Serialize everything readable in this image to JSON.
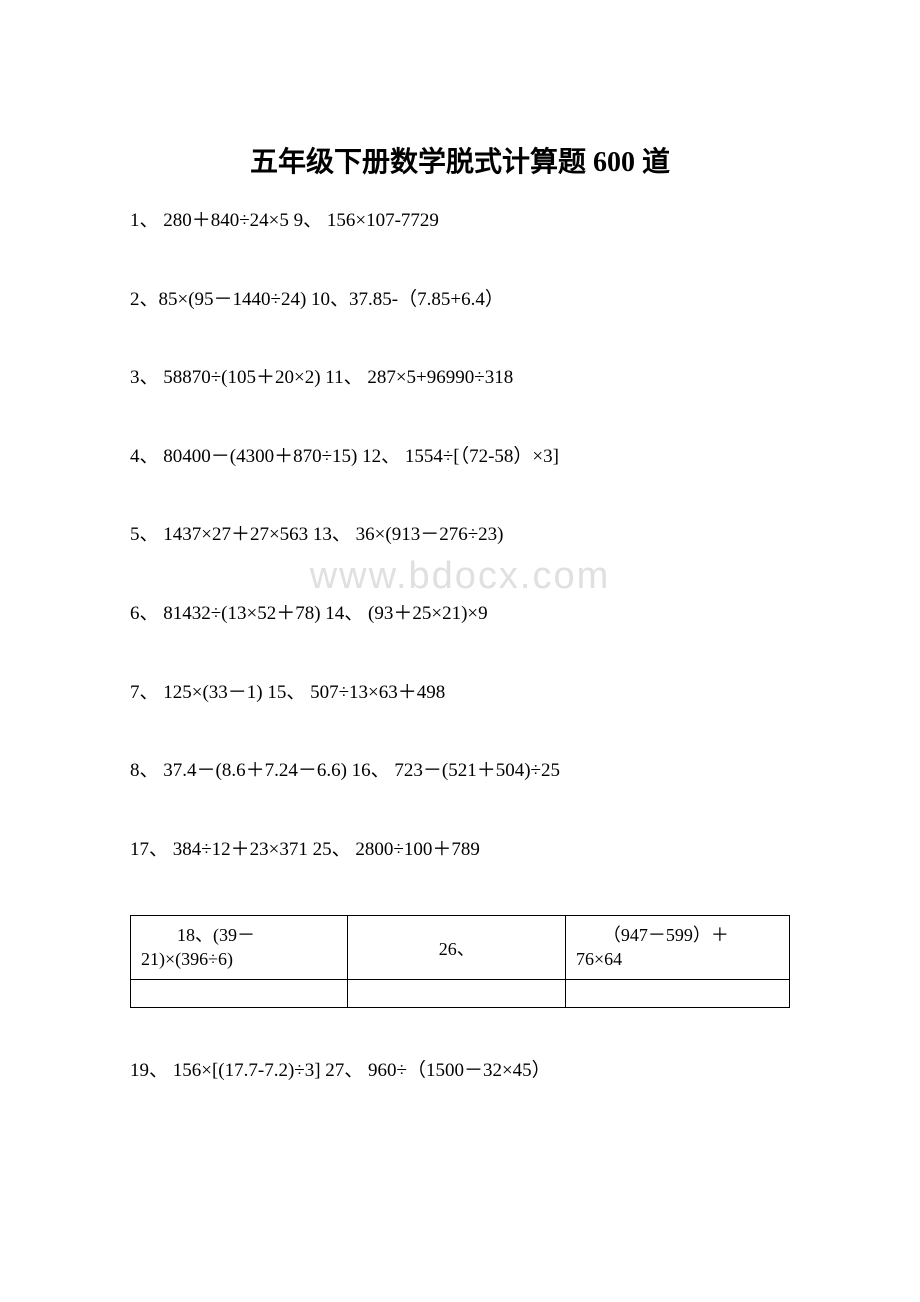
{
  "document": {
    "title": "五年级下册数学脱式计算题 600 道",
    "watermark": "www.bdocx.com",
    "problems": [
      "1、 280＋840÷24×5 9、 156×107-7729",
      "2、85×(95－1440÷24) 10、37.85-（7.85+6.4）",
      "3、 58870÷(105＋20×2) 11、 287×5+96990÷318",
      "4、 80400－(4300＋870÷15) 12、 1554÷[（72-58）×3]",
      "5、 1437×27＋27×563 13、 36×(913－276÷23)",
      "6、 81432÷(13×52＋78) 14、 (93＋25×21)×9",
      "7、 125×(33－1) 15、 507÷13×63＋498",
      "8、 37.4－(8.6＋7.24－6.6) 16、 723－(521＋504)÷25",
      "17、 384÷12＋23×371 25、 2800÷100＋789"
    ],
    "table": {
      "rows": [
        {
          "cell1_line1": "　　18、(39－",
          "cell1_line2": "21)×(396÷6)",
          "cell2": "26、",
          "cell3_line1": "　　（947－599）＋",
          "cell3_line2": "76×64"
        }
      ],
      "border_color": "#000000"
    },
    "after_table_problem": "19、 156×[(17.7-7.2)÷3] 27、 960÷（1500－32×45）",
    "colors": {
      "background": "#ffffff",
      "text": "#000000",
      "watermark": "#e0e0e0",
      "table_border": "#000000"
    },
    "typography": {
      "title_fontsize": 28,
      "title_weight": "bold",
      "body_fontsize": 19,
      "table_fontsize": 18,
      "watermark_fontsize": 38,
      "font_family": "SimSun"
    }
  }
}
